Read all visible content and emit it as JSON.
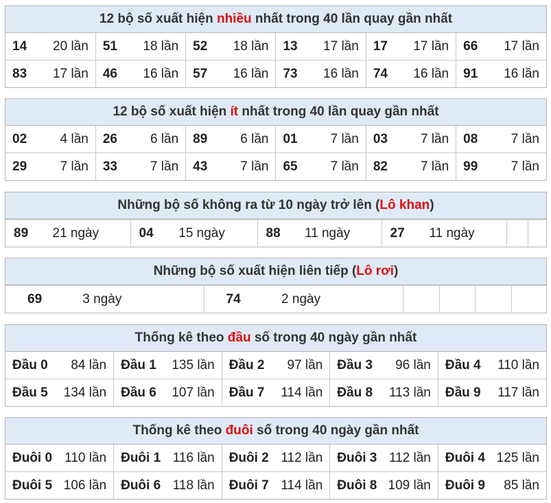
{
  "sections": [
    {
      "title": {
        "before": "12 bộ số xuất hiện ",
        "highlight": "nhiều",
        "after": " nhất trong 40 lần quay gần nhất"
      },
      "rows": [
        [
          {
            "code": "14",
            "count": "20 lần"
          },
          {
            "code": "51",
            "count": "18 lần"
          },
          {
            "code": "52",
            "count": "18 lần"
          },
          {
            "code": "13",
            "count": "17 lần"
          },
          {
            "code": "17",
            "count": "17 lần"
          },
          {
            "code": "66",
            "count": "17 lần"
          }
        ],
        [
          {
            "code": "83",
            "count": "17 lần"
          },
          {
            "code": "46",
            "count": "16 lần"
          },
          {
            "code": "57",
            "count": "16 lần"
          },
          {
            "code": "73",
            "count": "16 lần"
          },
          {
            "code": "74",
            "count": "16 lần"
          },
          {
            "code": "91",
            "count": "16 lần"
          }
        ]
      ]
    },
    {
      "title": {
        "before": "12 bộ số xuất hiện ",
        "highlight": "ít",
        "after": " nhất trong 40 lần quay gần nhất"
      },
      "rows": [
        [
          {
            "code": "02",
            "count": "4 lần"
          },
          {
            "code": "26",
            "count": "6 lần"
          },
          {
            "code": "89",
            "count": "6 lần"
          },
          {
            "code": "01",
            "count": "7 lần"
          },
          {
            "code": "03",
            "count": "7 lần"
          },
          {
            "code": "08",
            "count": "7 lần"
          }
        ],
        [
          {
            "code": "29",
            "count": "7 lần"
          },
          {
            "code": "33",
            "count": "7 lần"
          },
          {
            "code": "43",
            "count": "7 lần"
          },
          {
            "code": "65",
            "count": "7 lần"
          },
          {
            "code": "82",
            "count": "7 lần"
          },
          {
            "code": "99",
            "count": "7 lần"
          }
        ]
      ]
    },
    {
      "title": {
        "before": "Những bộ số không ra từ 10 ngày trở lên (",
        "highlight": "Lô khan",
        "after": ")"
      },
      "rows": [
        [
          {
            "code": "89",
            "count": "21 ngày"
          },
          {
            "code": "04",
            "count": "15 ngày"
          },
          {
            "code": "88",
            "count": "11 ngày"
          },
          {
            "code": "27",
            "count": "11 ngày"
          }
        ]
      ]
    },
    {
      "title": {
        "before": "Những bộ số xuất hiện liên tiếp (",
        "highlight": "Lô rơi",
        "after": ")"
      },
      "rows": [
        [
          {
            "code": "69",
            "count": "3 ngày"
          },
          {
            "code": "74",
            "count": "2 ngày"
          }
        ]
      ]
    },
    {
      "title": {
        "before": "Thống kê theo ",
        "highlight": "đầu",
        "after": " số trong 40 ngày gần nhất"
      },
      "rows": [
        [
          {
            "code": "Đầu 0",
            "count": "84 lần"
          },
          {
            "code": "Đầu 1",
            "count": "135 lần"
          },
          {
            "code": "Đầu 2",
            "count": "97 lần"
          },
          {
            "code": "Đầu 3",
            "count": "96 lần"
          },
          {
            "code": "Đầu 4",
            "count": "110 lần"
          }
        ],
        [
          {
            "code": "Đầu 5",
            "count": "134 lần"
          },
          {
            "code": "Đầu 6",
            "count": "107 lần"
          },
          {
            "code": "Đầu 7",
            "count": "114 lần"
          },
          {
            "code": "Đầu 8",
            "count": "113 lần"
          },
          {
            "code": "Đầu 9",
            "count": "117 lần"
          }
        ]
      ]
    },
    {
      "title": {
        "before": "Thống kê theo ",
        "highlight": "đuôi",
        "after": " số trong 40 ngày gần nhất"
      },
      "rows": [
        [
          {
            "code": "Đuôi 0",
            "count": "110 lần"
          },
          {
            "code": "Đuôi 1",
            "count": "116 lần"
          },
          {
            "code": "Đuôi 2",
            "count": "112 lần"
          },
          {
            "code": "Đuôi 3",
            "count": "112 lần"
          },
          {
            "code": "Đuôi 4",
            "count": "125 lần"
          }
        ],
        [
          {
            "code": "Đuôi 5",
            "count": "106 lần"
          },
          {
            "code": "Đuôi 6",
            "count": "118 lần"
          },
          {
            "code": "Đuôi 7",
            "count": "114 lần"
          },
          {
            "code": "Đuôi 8",
            "count": "109 lần"
          },
          {
            "code": "Đuôi 9",
            "count": "85 lần"
          }
        ]
      ]
    }
  ]
}
